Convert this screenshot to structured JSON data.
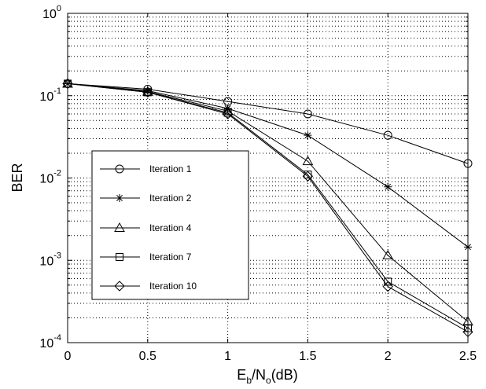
{
  "chart_data": {
    "type": "line",
    "xlabel": {
      "base": "E",
      "sub1": "b",
      "mid": "/N",
      "sub2": "o",
      "tail": "(dB)"
    },
    "ylabel": "BER",
    "xlim": [
      0,
      2.5
    ],
    "ylim": [
      0.0001,
      1
    ],
    "yscale": "log",
    "grid": true,
    "legend_position": "lower-left",
    "x_ticks": [
      0,
      0.5,
      1,
      1.5,
      2,
      2.5
    ],
    "x_tick_labels": [
      "0",
      "0.5",
      "1",
      "1.5",
      "2",
      "2.5"
    ],
    "y_ticks": [
      {
        "value": 1,
        "base": "10",
        "exp": "0"
      },
      {
        "value": 0.1,
        "base": "10",
        "exp": "-1"
      },
      {
        "value": 0.01,
        "base": "10",
        "exp": "-2"
      },
      {
        "value": 0.001,
        "base": "10",
        "exp": "-3"
      },
      {
        "value": 0.0001,
        "base": "10",
        "exp": "-4"
      }
    ],
    "x": [
      0,
      0.5,
      1,
      1.5,
      2,
      2.5
    ],
    "series": [
      {
        "name": "Iteration 1",
        "marker": "circle",
        "values": [
          0.14,
          0.12,
          0.085,
          0.06,
          0.033,
          0.015
        ]
      },
      {
        "name": "Iteration 2",
        "marker": "asterisk",
        "values": [
          0.14,
          0.115,
          0.07,
          0.033,
          0.0078,
          0.00145
        ]
      },
      {
        "name": "Iteration 4",
        "marker": "triangle",
        "values": [
          0.14,
          0.112,
          0.065,
          0.016,
          0.00115,
          0.00018
        ]
      },
      {
        "name": "Iteration 7",
        "marker": "square",
        "values": [
          0.14,
          0.11,
          0.062,
          0.011,
          0.00055,
          0.00015
        ]
      },
      {
        "name": "Iteration 10",
        "marker": "diamond",
        "values": [
          0.14,
          0.11,
          0.06,
          0.0105,
          0.00048,
          0.000135
        ]
      }
    ]
  }
}
